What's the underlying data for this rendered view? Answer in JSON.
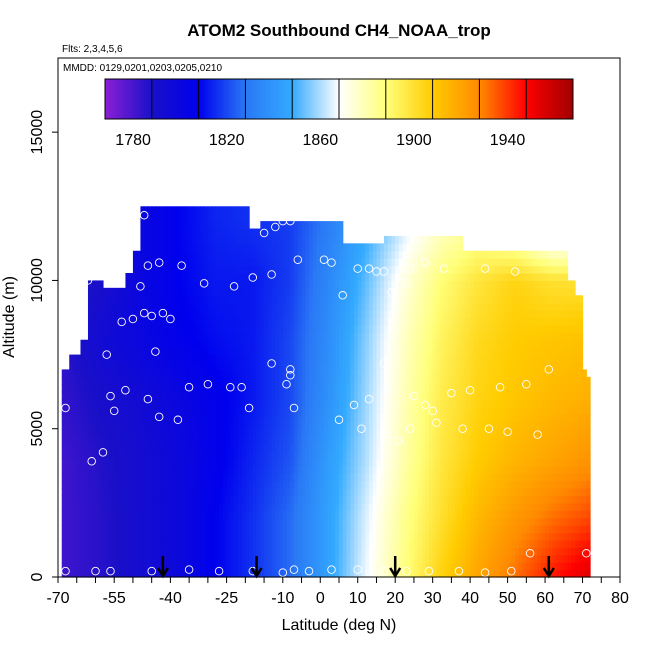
{
  "chart_data": {
    "type": "heatmap",
    "title": "ATOM2 Southbound CH4_NOAA_trop",
    "subtitle_flights": "Flts: 2,3,4,5,6",
    "subtitle_dates": "MMDD: 0129,0201,0203,0205,0210",
    "xlabel": "Latitude (deg N)",
    "ylabel": "Altitude (m)",
    "xlim": [
      -70,
      80
    ],
    "ylim": [
      0,
      17500
    ],
    "x_ticks": [
      "-70",
      "-55",
      "-40",
      "-25",
      "-10",
      "0",
      "10",
      "20",
      "30",
      "40",
      "50",
      "60",
      "70",
      "80"
    ],
    "x_tick_values": [
      -70,
      -55,
      -40,
      -25,
      -10,
      0,
      10,
      20,
      30,
      40,
      50,
      60,
      70,
      80
    ],
    "y_ticks": [
      "0",
      "5000",
      "10000",
      "15000"
    ],
    "y_tick_values": [
      0,
      5000,
      10000,
      15000
    ],
    "colorbar": {
      "range": [
        1768,
        1968
      ],
      "ticks": [
        "1780",
        "1820",
        "1860",
        "1900",
        "1940"
      ],
      "tick_values": [
        1780,
        1820,
        1860,
        1900,
        1940
      ],
      "colors": [
        "#8b1fd6",
        "#1a10c8",
        "#0000ee",
        "#2a78f5",
        "#33aaff",
        "#ffffff",
        "#ffff7a",
        "#ffcc00",
        "#ff8a00",
        "#ff0000",
        "#a00000"
      ]
    },
    "arrows_lat": [
      -42,
      -17,
      20,
      61
    ],
    "field_nodes": {
      "lats": [
        -68,
        -58,
        -48,
        -38,
        -28,
        -18,
        -8,
        2,
        12,
        22,
        32,
        42,
        52,
        62,
        72
      ],
      "alts": [
        0,
        2000,
        4000,
        6000,
        8000,
        10000,
        12000
      ],
      "values": [
        [
          1782,
          1786,
          1792,
          1798,
          1808,
          1816,
          1826,
          1844,
          1866,
          1886,
          1905,
          1920,
          1932,
          1945,
          1955
        ],
        [
          1782,
          1786,
          1792,
          1798,
          1808,
          1816,
          1826,
          1844,
          1864,
          1884,
          1900,
          1914,
          1924,
          1932,
          1938
        ],
        [
          1782,
          1787,
          1792,
          1798,
          1806,
          1814,
          1822,
          1842,
          1860,
          1880,
          1897,
          1908,
          1915,
          1920,
          1925
        ],
        [
          1784,
          1790,
          1794,
          1800,
          1806,
          1812,
          1820,
          1838,
          1858,
          1878,
          1895,
          1905,
          1910,
          1914,
          1917
        ],
        [
          1786,
          1794,
          1800,
          1806,
          1810,
          1812,
          1820,
          1836,
          1856,
          1876,
          1892,
          1903,
          1908,
          1910,
          1912
        ],
        [
          1782,
          1790,
          1800,
          1808,
          1812,
          1812,
          1818,
          1834,
          1852,
          1872,
          1888,
          1898,
          1905,
          1900,
          1900
        ],
        [
          1778,
          1790,
          1800,
          1808,
          1814,
          1816,
          1818,
          1830,
          1846,
          1862,
          1875,
          1882,
          1870,
          1850,
          1850
        ]
      ]
    },
    "coverage_profile": [
      [
        -69,
        6800
      ],
      [
        -67,
        7500
      ],
      [
        -64,
        8000
      ],
      [
        -62,
        9800
      ],
      [
        -58,
        9600
      ],
      [
        -52,
        10200
      ],
      [
        -50,
        11000
      ],
      [
        -48,
        12500
      ],
      [
        -20,
        12500
      ],
      [
        -19,
        11700
      ],
      [
        -17,
        11700
      ],
      [
        -16,
        12000
      ],
      [
        5,
        12000
      ],
      [
        6,
        11200
      ],
      [
        16,
        11200
      ],
      [
        17,
        11500
      ],
      [
        36,
        11500
      ],
      [
        38,
        11000
      ],
      [
        62,
        11000
      ],
      [
        63,
        10800
      ],
      [
        66,
        10000
      ],
      [
        68,
        9400
      ],
      [
        70,
        7000
      ],
      [
        71,
        6600
      ],
      [
        72,
        0
      ]
    ],
    "points": [
      [
        -68,
        200
      ],
      [
        -60,
        200
      ],
      [
        -56,
        200
      ],
      [
        -45,
        200
      ],
      [
        -35,
        250
      ],
      [
        -27,
        200
      ],
      [
        -18,
        200
      ],
      [
        -10,
        150
      ],
      [
        -7,
        250
      ],
      [
        -3,
        200
      ],
      [
        3,
        250
      ],
      [
        10,
        250
      ],
      [
        17,
        200
      ],
      [
        23,
        200
      ],
      [
        29,
        200
      ],
      [
        37,
        200
      ],
      [
        44,
        150
      ],
      [
        51,
        200
      ],
      [
        56,
        800
      ],
      [
        71,
        800
      ],
      [
        -61,
        3900
      ],
      [
        -58,
        4200
      ],
      [
        -68,
        5700
      ],
      [
        -55,
        5600
      ],
      [
        -43,
        5400
      ],
      [
        -38,
        5300
      ],
      [
        -19,
        5700
      ],
      [
        -7,
        5700
      ],
      [
        5,
        5300
      ],
      [
        9,
        5800
      ],
      [
        11,
        5000
      ],
      [
        18,
        4800
      ],
      [
        21,
        4600
      ],
      [
        24,
        5000
      ],
      [
        31,
        5200
      ],
      [
        38,
        5000
      ],
      [
        45,
        5000
      ],
      [
        50,
        4900
      ],
      [
        58,
        4800
      ],
      [
        -56,
        6100
      ],
      [
        -52,
        6300
      ],
      [
        -46,
        6000
      ],
      [
        -35,
        6400
      ],
      [
        -30,
        6500
      ],
      [
        -24,
        6400
      ],
      [
        -21,
        6400
      ],
      [
        -9,
        6500
      ],
      [
        -8,
        6800
      ],
      [
        -8,
        7000
      ],
      [
        -13,
        7200
      ],
      [
        13,
        6000
      ],
      [
        18,
        6300
      ],
      [
        25,
        6100
      ],
      [
        28,
        5800
      ],
      [
        30,
        5600
      ],
      [
        35,
        6200
      ],
      [
        40,
        6300
      ],
      [
        48,
        6400
      ],
      [
        55,
        6500
      ],
      [
        -57,
        7500
      ],
      [
        -44,
        7600
      ],
      [
        17,
        7200
      ],
      [
        61,
        7000
      ],
      [
        -53,
        8600
      ],
      [
        -50,
        8700
      ],
      [
        -47,
        8900
      ],
      [
        -45,
        8800
      ],
      [
        -42,
        8900
      ],
      [
        -40,
        8700
      ],
      [
        -48,
        9800
      ],
      [
        -31,
        9900
      ],
      [
        -23,
        9800
      ],
      [
        -66,
        9700
      ],
      [
        -64,
        9900
      ],
      [
        -62,
        10000
      ],
      [
        -18,
        10100
      ],
      [
        -13,
        10200
      ],
      [
        6,
        9500
      ],
      [
        13,
        10400
      ],
      [
        19,
        9600
      ],
      [
        23,
        9900
      ],
      [
        -56,
        10800
      ],
      [
        -46,
        10500
      ],
      [
        -43,
        10600
      ],
      [
        -37,
        10500
      ],
      [
        -6,
        10700
      ],
      [
        1,
        10700
      ],
      [
        3,
        10600
      ],
      [
        10,
        10400
      ],
      [
        15,
        10300
      ],
      [
        17,
        10300
      ],
      [
        24,
        10400
      ],
      [
        28,
        10600
      ],
      [
        33,
        10400
      ],
      [
        44,
        10400
      ],
      [
        52,
        10300
      ],
      [
        -15,
        11600
      ],
      [
        -12,
        11800
      ],
      [
        -10,
        12000
      ],
      [
        -8,
        12000
      ],
      [
        -47,
        12200
      ],
      [
        -52,
        12000
      ]
    ]
  }
}
